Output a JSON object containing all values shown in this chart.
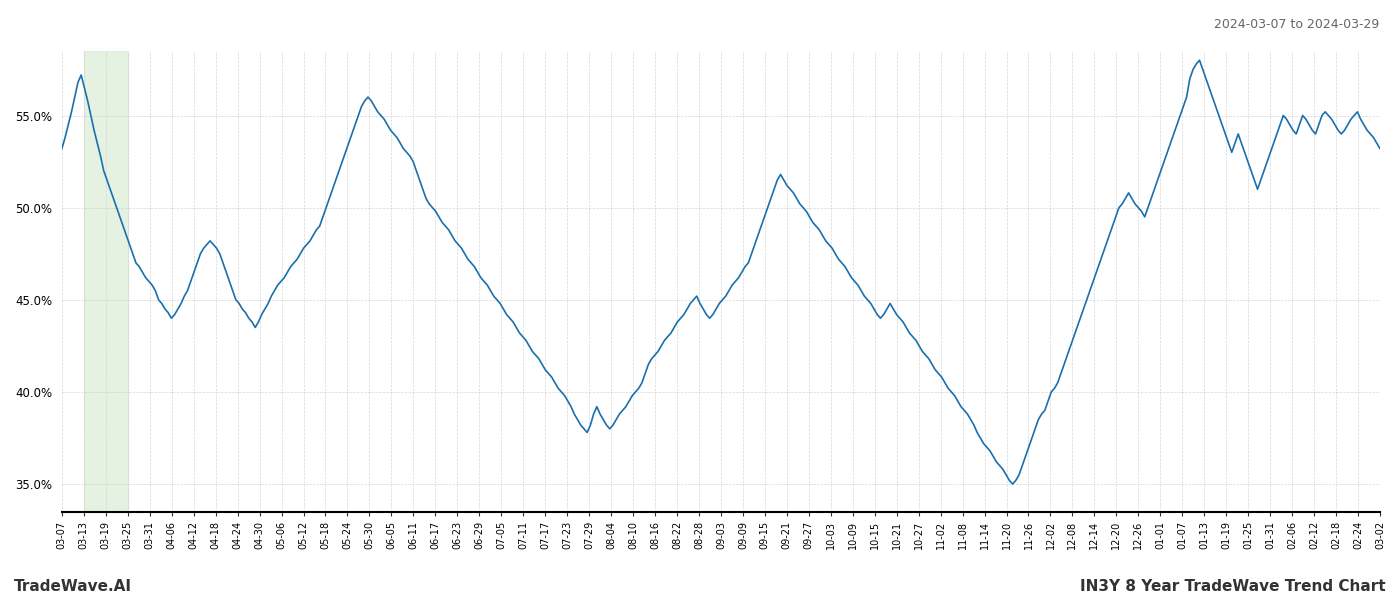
{
  "title_right": "2024-03-07 to 2024-03-29",
  "footer_left": "TradeWave.AI",
  "footer_right": "IN3Y 8 Year TradeWave Trend Chart",
  "line_color": "#1a6fad",
  "line_width": 1.2,
  "background_color": "#ffffff",
  "grid_color": "#cccccc",
  "highlight_color": "#d4ead0",
  "highlight_alpha": 0.6,
  "ylim": [
    33.5,
    58.5
  ],
  "yticks": [
    35.0,
    40.0,
    45.0,
    50.0,
    55.0
  ],
  "x_labels": [
    "03-07",
    "03-13",
    "03-19",
    "03-25",
    "03-31",
    "04-06",
    "04-12",
    "04-18",
    "04-24",
    "04-30",
    "05-06",
    "05-12",
    "05-18",
    "05-24",
    "05-30",
    "06-05",
    "06-11",
    "06-17",
    "06-23",
    "06-29",
    "07-05",
    "07-11",
    "07-17",
    "07-23",
    "07-29",
    "08-04",
    "08-10",
    "08-16",
    "08-22",
    "08-28",
    "09-03",
    "09-09",
    "09-15",
    "09-21",
    "09-27",
    "10-03",
    "10-09",
    "10-15",
    "10-21",
    "10-27",
    "11-02",
    "11-08",
    "11-14",
    "11-20",
    "11-26",
    "12-02",
    "12-08",
    "12-14",
    "12-20",
    "12-26",
    "01-01",
    "01-07",
    "01-13",
    "01-19",
    "01-25",
    "01-31",
    "02-06",
    "02-12",
    "02-18",
    "02-24",
    "03-02"
  ],
  "highlight_x_start_label": "03-13",
  "highlight_x_end_label": "03-25",
  "values": [
    53.2,
    53.8,
    54.5,
    55.2,
    56.0,
    56.8,
    57.2,
    56.5,
    55.8,
    55.0,
    54.2,
    53.5,
    52.8,
    52.0,
    51.5,
    51.0,
    50.5,
    50.0,
    49.5,
    49.0,
    48.5,
    48.0,
    47.5,
    47.0,
    46.8,
    46.5,
    46.2,
    46.0,
    45.8,
    45.5,
    45.0,
    44.8,
    44.5,
    44.3,
    44.0,
    44.2,
    44.5,
    44.8,
    45.2,
    45.5,
    46.0,
    46.5,
    47.0,
    47.5,
    47.8,
    48.0,
    48.2,
    48.0,
    47.8,
    47.5,
    47.0,
    46.5,
    46.0,
    45.5,
    45.0,
    44.8,
    44.5,
    44.3,
    44.0,
    43.8,
    43.5,
    43.8,
    44.2,
    44.5,
    44.8,
    45.2,
    45.5,
    45.8,
    46.0,
    46.2,
    46.5,
    46.8,
    47.0,
    47.2,
    47.5,
    47.8,
    48.0,
    48.2,
    48.5,
    48.8,
    49.0,
    49.5,
    50.0,
    50.5,
    51.0,
    51.5,
    52.0,
    52.5,
    53.0,
    53.5,
    54.0,
    54.5,
    55.0,
    55.5,
    55.8,
    56.0,
    55.8,
    55.5,
    55.2,
    55.0,
    54.8,
    54.5,
    54.2,
    54.0,
    53.8,
    53.5,
    53.2,
    53.0,
    52.8,
    52.5,
    52.0,
    51.5,
    51.0,
    50.5,
    50.2,
    50.0,
    49.8,
    49.5,
    49.2,
    49.0,
    48.8,
    48.5,
    48.2,
    48.0,
    47.8,
    47.5,
    47.2,
    47.0,
    46.8,
    46.5,
    46.2,
    46.0,
    45.8,
    45.5,
    45.2,
    45.0,
    44.8,
    44.5,
    44.2,
    44.0,
    43.8,
    43.5,
    43.2,
    43.0,
    42.8,
    42.5,
    42.2,
    42.0,
    41.8,
    41.5,
    41.2,
    41.0,
    40.8,
    40.5,
    40.2,
    40.0,
    39.8,
    39.5,
    39.2,
    38.8,
    38.5,
    38.2,
    38.0,
    37.8,
    38.2,
    38.8,
    39.2,
    38.8,
    38.5,
    38.2,
    38.0,
    38.2,
    38.5,
    38.8,
    39.0,
    39.2,
    39.5,
    39.8,
    40.0,
    40.2,
    40.5,
    41.0,
    41.5,
    41.8,
    42.0,
    42.2,
    42.5,
    42.8,
    43.0,
    43.2,
    43.5,
    43.8,
    44.0,
    44.2,
    44.5,
    44.8,
    45.0,
    45.2,
    44.8,
    44.5,
    44.2,
    44.0,
    44.2,
    44.5,
    44.8,
    45.0,
    45.2,
    45.5,
    45.8,
    46.0,
    46.2,
    46.5,
    46.8,
    47.0,
    47.5,
    48.0,
    48.5,
    49.0,
    49.5,
    50.0,
    50.5,
    51.0,
    51.5,
    51.8,
    51.5,
    51.2,
    51.0,
    50.8,
    50.5,
    50.2,
    50.0,
    49.8,
    49.5,
    49.2,
    49.0,
    48.8,
    48.5,
    48.2,
    48.0,
    47.8,
    47.5,
    47.2,
    47.0,
    46.8,
    46.5,
    46.2,
    46.0,
    45.8,
    45.5,
    45.2,
    45.0,
    44.8,
    44.5,
    44.2,
    44.0,
    44.2,
    44.5,
    44.8,
    44.5,
    44.2,
    44.0,
    43.8,
    43.5,
    43.2,
    43.0,
    42.8,
    42.5,
    42.2,
    42.0,
    41.8,
    41.5,
    41.2,
    41.0,
    40.8,
    40.5,
    40.2,
    40.0,
    39.8,
    39.5,
    39.2,
    39.0,
    38.8,
    38.5,
    38.2,
    37.8,
    37.5,
    37.2,
    37.0,
    36.8,
    36.5,
    36.2,
    36.0,
    35.8,
    35.5,
    35.2,
    35.0,
    35.2,
    35.5,
    36.0,
    36.5,
    37.0,
    37.5,
    38.0,
    38.5,
    38.8,
    39.0,
    39.5,
    40.0,
    40.2,
    40.5,
    41.0,
    41.5,
    42.0,
    42.5,
    43.0,
    43.5,
    44.0,
    44.5,
    45.0,
    45.5,
    46.0,
    46.5,
    47.0,
    47.5,
    48.0,
    48.5,
    49.0,
    49.5,
    50.0,
    50.2,
    50.5,
    50.8,
    50.5,
    50.2,
    50.0,
    49.8,
    49.5,
    50.0,
    50.5,
    51.0,
    51.5,
    52.0,
    52.5,
    53.0,
    53.5,
    54.0,
    54.5,
    55.0,
    55.5,
    56.0,
    57.0,
    57.5,
    57.8,
    58.0,
    57.5,
    57.0,
    56.5,
    56.0,
    55.5,
    55.0,
    54.5,
    54.0,
    53.5,
    53.0,
    53.5,
    54.0,
    53.5,
    53.0,
    52.5,
    52.0,
    51.5,
    51.0,
    51.5,
    52.0,
    52.5,
    53.0,
    53.5,
    54.0,
    54.5,
    55.0,
    54.8,
    54.5,
    54.2,
    54.0,
    54.5,
    55.0,
    54.8,
    54.5,
    54.2,
    54.0,
    54.5,
    55.0,
    55.2,
    55.0,
    54.8,
    54.5,
    54.2,
    54.0,
    54.2,
    54.5,
    54.8,
    55.0,
    55.2,
    54.8,
    54.5,
    54.2,
    54.0,
    53.8,
    53.5,
    53.2
  ]
}
